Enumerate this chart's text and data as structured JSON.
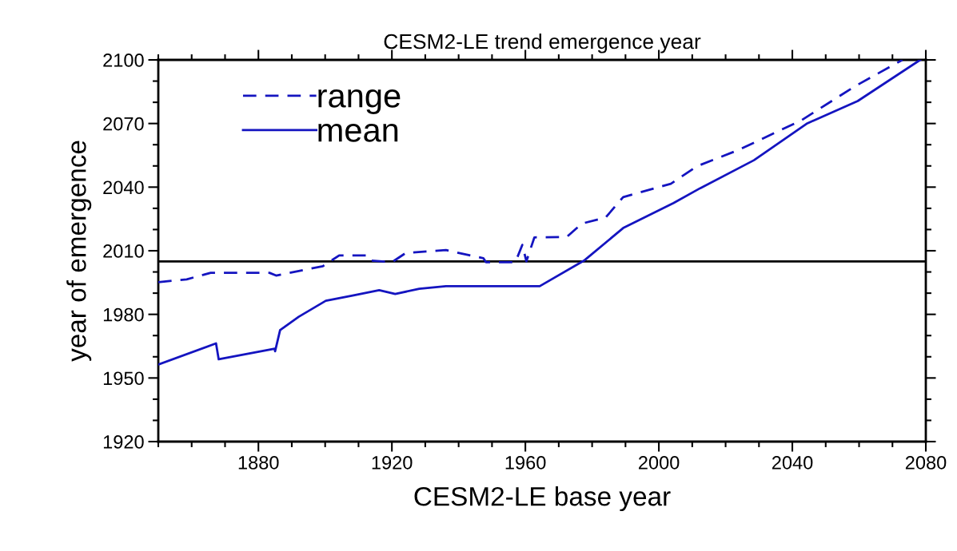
{
  "chart_data": {
    "type": "line",
    "title": "CESM2-LE trend emergence year",
    "xlabel": "CESM2-LE base year",
    "ylabel": "year of emergence",
    "xlim": [
      1850,
      2080
    ],
    "xticks": [
      1880,
      1920,
      1960,
      2000,
      2040,
      2080
    ],
    "ylim": [
      1920,
      2100
    ],
    "yticks": [
      1920,
      1950,
      1980,
      2010,
      2040,
      2070,
      2100
    ],
    "grid": false,
    "legend": "top left",
    "ref_lines": [
      {
        "axis": "y",
        "value": 2005,
        "color": "#000000"
      }
    ],
    "series": [
      {
        "name": "range",
        "color": "#1414c0",
        "line_style": "dashed",
        "x": [
          1850,
          1858.5,
          1865.7,
          1883.3,
          1885.3,
          1899.3,
          1904.2,
          1912.2,
          1913,
          1920,
          1924.2,
          1936.2,
          1947.4,
          1948.2,
          1957,
          1959.1,
          1960.3,
          1962.7,
          1972.4,
          1976.9,
          1984,
          1989.3,
          2003.6,
          2011.5,
          2024,
          2042.7,
          2058.7,
          2073
        ],
        "values": [
          1995.2,
          1996.5,
          1999.6,
          1999.6,
          1998.3,
          2002.7,
          2007.8,
          2007.8,
          2005.5,
          2004.6,
          2009,
          2010.3,
          2006.5,
          2004.6,
          2004.6,
          2012.8,
          2005,
          2016.3,
          2016.5,
          2022.8,
          2025.6,
          2035.3,
          2041.6,
          2049.9,
          2057.6,
          2071.5,
          2087.5,
          2100
        ]
      },
      {
        "name": "mean",
        "color": "#1414c0",
        "line_style": "solid",
        "x": [
          1850,
          1867.3,
          1868.1,
          1884.9,
          1885,
          1886.5,
          1892.1,
          1900.2,
          1908.2,
          1916.2,
          1921,
          1928.2,
          1936.2,
          1964.3,
          1977.8,
          1989.3,
          2004.4,
          2012.4,
          2028.5,
          2044.5,
          2059.6,
          2078.3
        ],
        "values": [
          1956.3,
          1966.3,
          1958.8,
          1963.8,
          1962.6,
          1972.6,
          1978.9,
          1986.4,
          1988.9,
          1991.4,
          1989.6,
          1992.1,
          1993.3,
          1993.3,
          2005.6,
          2020.7,
          2032.5,
          2039.5,
          2052.7,
          2070.1,
          2080.6,
          2100
        ]
      }
    ]
  }
}
